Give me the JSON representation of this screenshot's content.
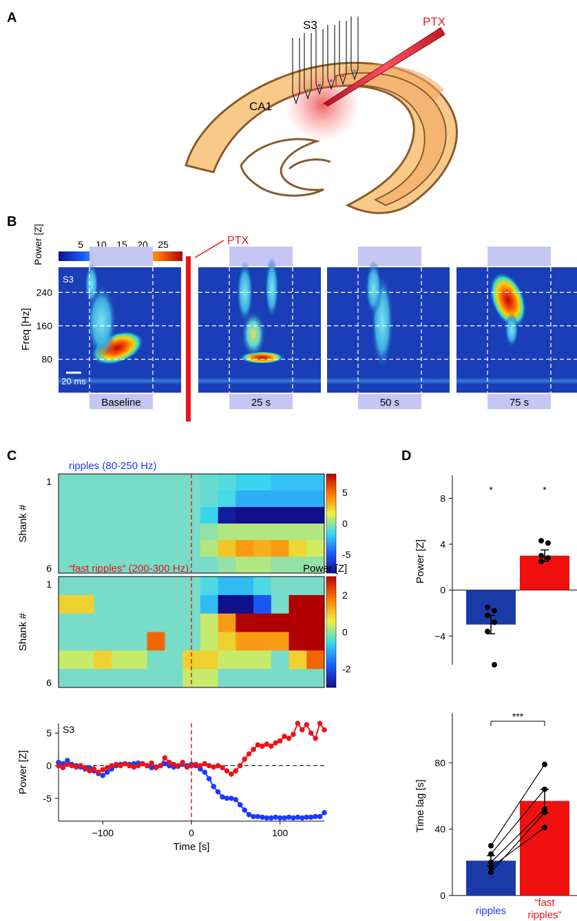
{
  "panels": {
    "a": "A",
    "b": "B",
    "c": "C",
    "d": "D"
  },
  "panel_a": {
    "probe_label": "S3",
    "region_label": "CA1",
    "drug_label": "PTX"
  },
  "panel_b": {
    "colorbar_title": "Power\n[Z]",
    "colorbar_ticks": [
      "5",
      "10",
      "15",
      "20",
      "25"
    ],
    "drug_label": "PTX",
    "ylabel": "Freq [Hz]",
    "yticks": [
      "80",
      "160",
      "240"
    ],
    "channel_label": "S3",
    "scale_label": "20 ms",
    "conditions": [
      "Baseline",
      "25 s",
      "50 s",
      "75 s"
    ]
  },
  "chart_data": [
    {
      "type": "heatmap",
      "title": "ripples (80-250 Hz)",
      "ylabel": "Shank #",
      "yticks": [
        "1",
        "6"
      ],
      "xlim": [
        -150,
        150
      ],
      "colorbar_ticks": [
        "5",
        "0",
        "-5"
      ],
      "colorbar_range": [
        -8,
        8
      ],
      "rows": 6,
      "values": [
        [
          0,
          0,
          0,
          0,
          0,
          0,
          0,
          0,
          -0.5,
          -1.0,
          -2.0,
          -2.0,
          -2.5,
          -2.5,
          -2.5
        ],
        [
          0,
          0,
          0,
          0,
          0,
          0,
          0,
          0,
          -0.5,
          -1.5,
          -3.0,
          -3.0,
          -3.0,
          -3.0,
          -3.0
        ],
        [
          0,
          0,
          0,
          0,
          0,
          0,
          0,
          0,
          -2.0,
          -7.5,
          -8.0,
          -8.0,
          -8.0,
          -8.0,
          -8.0
        ],
        [
          0,
          0,
          0,
          0,
          0,
          0,
          0,
          0,
          0.5,
          1.0,
          1.0,
          1.0,
          1.0,
          1.0,
          1.0
        ],
        [
          0,
          0,
          0,
          0,
          0,
          0,
          0,
          0,
          1.0,
          3.0,
          4.0,
          3.5,
          4.0,
          2.5,
          1.5
        ],
        [
          0,
          0,
          0,
          0,
          0,
          0,
          0,
          0,
          0,
          0.5,
          1.0,
          1.0,
          0.5,
          0.5,
          0.5
        ]
      ]
    },
    {
      "type": "heatmap",
      "title": "“fast ripples” (200-300 Hz)",
      "ylabel": "Shank #",
      "colorbar_title": "Power [Z]",
      "yticks": [
        "1",
        "6"
      ],
      "xlim": [
        -150,
        150
      ],
      "colorbar_ticks": [
        "2",
        "0",
        "-2"
      ],
      "colorbar_range": [
        -3,
        3
      ],
      "rows": 6,
      "values": [
        [
          0,
          0,
          0,
          0,
          0,
          0,
          0,
          0,
          -0.5,
          -1.0,
          -1.0,
          -0.5,
          0,
          0,
          0
        ],
        [
          1.0,
          1.0,
          0,
          0,
          0,
          0,
          0,
          0,
          -1.0,
          -3.0,
          -3.0,
          -2.0,
          0,
          3.0,
          3.0
        ],
        [
          0,
          0,
          0,
          0,
          0,
          0,
          0,
          0,
          0.5,
          1.5,
          3.0,
          3.0,
          3.0,
          3.0,
          3.0
        ],
        [
          0,
          0,
          0,
          0,
          0,
          2.0,
          0,
          0,
          0.5,
          1.0,
          1.5,
          1.5,
          1.5,
          3.0,
          3.0
        ],
        [
          0.5,
          0.5,
          1.0,
          0.5,
          0.5,
          0,
          0,
          1.0,
          1.0,
          0.5,
          0.5,
          0.5,
          0,
          1.0,
          2.0
        ],
        [
          0,
          0,
          0,
          0,
          0,
          0,
          0,
          0.5,
          0.5,
          0,
          0,
          0,
          0,
          0,
          0
        ]
      ]
    },
    {
      "type": "line",
      "title": "S3",
      "xlabel": "Time [s]",
      "ylabel": "Power [Z]",
      "xlim": [
        -150,
        150
      ],
      "ylim": [
        -8.5,
        6.5
      ],
      "xticks": [
        -100,
        0,
        100
      ],
      "yticks": [
        5,
        0,
        -5
      ],
      "series": [
        {
          "color": "#1a3bff",
          "x": [
            -150,
            -145,
            -140,
            -135,
            -130,
            -125,
            -120,
            -115,
            -110,
            -105,
            -100,
            -95,
            -90,
            -85,
            -80,
            -75,
            -70,
            -65,
            -60,
            -55,
            -50,
            -45,
            -40,
            -35,
            -30,
            -25,
            -20,
            -15,
            -10,
            -5,
            0,
            5,
            10,
            15,
            20,
            25,
            30,
            35,
            40,
            45,
            50,
            55,
            60,
            65,
            70,
            75,
            80,
            85,
            90,
            95,
            100,
            105,
            110,
            115,
            120,
            125,
            130,
            135,
            140,
            145,
            150
          ],
          "y": [
            0.5,
            0.3,
            0.8,
            0.2,
            0.0,
            -0.2,
            -0.5,
            -0.3,
            -0.8,
            -1.2,
            -1.5,
            -1.0,
            -0.5,
            0.0,
            0.2,
            0.3,
            0.2,
            0.3,
            0.4,
            0.3,
            0.0,
            -0.3,
            -0.2,
            0.0,
            0.3,
            0.0,
            -0.2,
            -0.1,
            0.2,
            0.0,
            0.2,
            0.0,
            -0.5,
            -1.0,
            -2.0,
            -3.2,
            -4.0,
            -4.8,
            -5.0,
            -5.0,
            -5.2,
            -6.0,
            -6.8,
            -7.5,
            -7.8,
            -7.8,
            -7.9,
            -8.0,
            -8.0,
            -7.9,
            -8.0,
            -8.0,
            -7.9,
            -8.0,
            -7.9,
            -8.0,
            -7.9,
            -7.9,
            -7.8,
            -7.8,
            -7.2
          ]
        },
        {
          "color": "#e8141b",
          "x": [
            -150,
            -145,
            -140,
            -135,
            -130,
            -125,
            -120,
            -115,
            -110,
            -105,
            -100,
            -95,
            -90,
            -85,
            -80,
            -75,
            -70,
            -65,
            -60,
            -55,
            -50,
            -45,
            -40,
            -35,
            -30,
            -25,
            -20,
            -15,
            -10,
            -5,
            0,
            5,
            10,
            15,
            20,
            25,
            30,
            35,
            40,
            45,
            50,
            55,
            60,
            65,
            70,
            75,
            80,
            85,
            90,
            95,
            100,
            105,
            110,
            115,
            120,
            125,
            130,
            135,
            140,
            145,
            150
          ],
          "y": [
            0.0,
            -0.3,
            0.2,
            0.0,
            -0.2,
            0.0,
            -0.3,
            -0.8,
            -0.5,
            -1.0,
            -0.6,
            -0.3,
            0.0,
            0.2,
            0.0,
            0.3,
            0.0,
            -0.2,
            0.0,
            0.3,
            0.0,
            0.4,
            -0.3,
            0.0,
            1.2,
            0.5,
            0.2,
            0.0,
            0.5,
            -0.2,
            0.0,
            0.2,
            0.0,
            0.3,
            0.0,
            -0.2,
            0.0,
            -0.3,
            -0.8,
            -1.3,
            -0.8,
            0.0,
            1.0,
            1.8,
            2.5,
            3.2,
            3.0,
            3.3,
            3.0,
            3.5,
            3.8,
            4.5,
            4.2,
            4.8,
            6.5,
            5.5,
            6.3,
            5.0,
            4.2,
            6.5,
            5.5
          ]
        }
      ]
    },
    {
      "type": "bar",
      "ylabel": "Power [Z]",
      "categories": [
        "ripples",
        "“fast ripples”"
      ],
      "values": [
        -3.0,
        3.0
      ],
      "errors": [
        0.8,
        0.5
      ],
      "colors": [
        "#1a3aa8",
        "#f01010"
      ],
      "ylim": [
        -6.5,
        10
      ],
      "yticks": [
        8,
        4,
        0,
        -4
      ],
      "significance": [
        "*",
        "*"
      ],
      "points": [
        [
          -1.5,
          -1.8,
          -2.2,
          -2.8,
          -3.6,
          -6.5
        ],
        [
          2.5,
          2.8,
          3.0,
          4.1,
          4.3
        ]
      ]
    },
    {
      "type": "bar",
      "ylabel": "Time lag [s]",
      "categories": [
        "ripples",
        "“fast ripples”"
      ],
      "values": [
        21,
        57
      ],
      "errors": [
        3,
        7
      ],
      "colors": [
        "#1a3aa8",
        "#f01010"
      ],
      "ylim": [
        0,
        110
      ],
      "yticks": [
        0,
        40,
        80
      ],
      "significance_label": "***",
      "paired_points": [
        [
          14,
          50
        ],
        [
          17,
          41
        ],
        [
          20,
          52
        ],
        [
          25,
          64
        ],
        [
          30,
          79
        ]
      ]
    }
  ],
  "x_ticks": [
    "-100",
    "0",
    "100"
  ],
  "x_label": "Time [s]"
}
